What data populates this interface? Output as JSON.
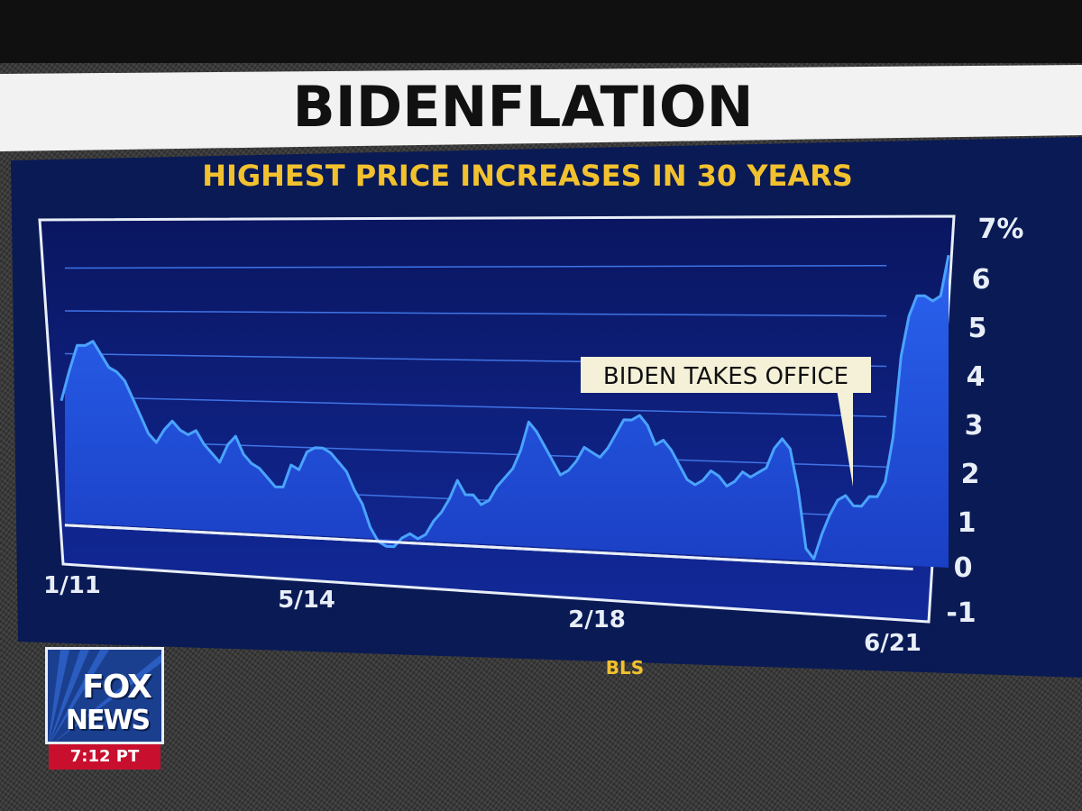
{
  "header": {
    "title": "BIDENFLATION",
    "subtitle": "HIGHEST PRICE INCREASES IN 30 YEARS"
  },
  "source": "BLS",
  "broadcast": {
    "network_line1": "FOX",
    "network_line2": "NEWS",
    "time": "7:12 PT"
  },
  "colors": {
    "title_band": "#f2f2f2",
    "title_text": "#111111",
    "subtitle_text": "#f2c12e",
    "panel": "#0a1a55",
    "plot_bg": "#0b1d6e",
    "area_fill": "#1f4bd6",
    "line": "#4aa3ff",
    "annotation_bg": "#f4f1d8"
  },
  "chart_data": {
    "type": "area",
    "title": "HIGHEST PRICE INCREASES IN 30 YEARS",
    "ylim": [
      -1,
      7
    ],
    "y_ticks": [
      "7%",
      "6",
      "5",
      "4",
      "3",
      "2",
      "1",
      "0",
      "-1"
    ],
    "x_ticks": [
      "1/11",
      "5/14",
      "2/18",
      "6/21"
    ],
    "grid": true,
    "x_start": "2011-01",
    "x_end": "2021-09",
    "series": [
      {
        "values": [
          2.9,
          3.6,
          4.2,
          4.2,
          4.3,
          4.0,
          3.7,
          3.6,
          3.4,
          3.0,
          2.6,
          2.2,
          2.0,
          2.3,
          2.5,
          2.3,
          2.2,
          2.3,
          2.0,
          1.8,
          1.6,
          2.0,
          2.2,
          1.8,
          1.6,
          1.5,
          1.3,
          1.1,
          1.1,
          1.6,
          1.5,
          1.9,
          2.0,
          2.0,
          1.9,
          1.7,
          1.5,
          1.1,
          0.8,
          0.3,
          0.0,
          -0.1,
          -0.1,
          0.1,
          0.2,
          0.1,
          0.2,
          0.5,
          0.7,
          1.0,
          1.4,
          1.1,
          1.1,
          0.9,
          1.0,
          1.3,
          1.5,
          1.7,
          2.1,
          2.7,
          2.5,
          2.2,
          1.9,
          1.6,
          1.7,
          1.9,
          2.2,
          2.1,
          2.0,
          2.2,
          2.5,
          2.8,
          2.8,
          2.9,
          2.7,
          2.3,
          2.4,
          2.2,
          1.9,
          1.6,
          1.5,
          1.6,
          1.8,
          1.7,
          1.5,
          1.6,
          1.8,
          1.7,
          1.8,
          1.9,
          2.3,
          2.5,
          2.3,
          1.5,
          0.3,
          0.1,
          0.6,
          1.0,
          1.3,
          1.4,
          1.2,
          1.2,
          1.4,
          1.4,
          1.7,
          2.6,
          4.2,
          5.0,
          5.4,
          5.4,
          5.3,
          5.4,
          6.2
        ]
      }
    ],
    "annotations": [
      {
        "text": "BIDEN TAKES OFFICE",
        "x_index": 104
      }
    ]
  }
}
